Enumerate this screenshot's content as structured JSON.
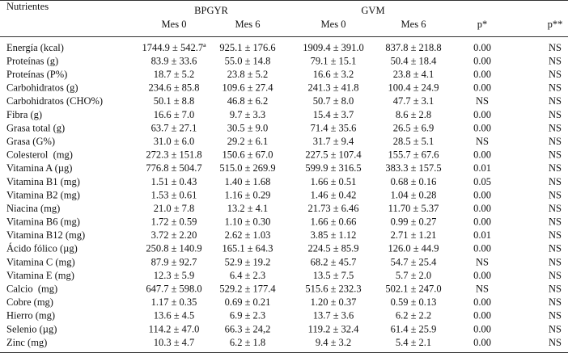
{
  "table": {
    "header": {
      "first": "Nutrientes",
      "groups": [
        "BPGYR",
        "GVM"
      ],
      "columns": [
        "Mes 0",
        "Mes 6",
        "Mes 0",
        "Mes 6",
        "p*",
        "p**"
      ]
    },
    "rows": [
      [
        "Energía (kcal)",
        "1744.9 ± 542.7ª",
        "925.1 ± 176.6",
        "1909.4 ± 391.0",
        "837.8 ± 218.8",
        "0.00",
        "NS"
      ],
      [
        "Proteínas (g)",
        "83.9 ± 33.6",
        "55.0 ± 14.8",
        "79.1 ± 15.1",
        "50.4 ± 18.4",
        "0.00",
        "NS"
      ],
      [
        "Proteínas (P%)",
        "18.7 ± 5.2",
        "23.8 ± 5.2",
        "16.6 ± 3.2",
        "23.8 ± 4.1",
        "0.00",
        "NS"
      ],
      [
        "Carbohidratos (g)",
        "234.6 ± 85.8",
        "109.6 ± 27.4",
        "241.3 ± 41.8",
        "100.4 ± 24.9",
        "0.00",
        "NS"
      ],
      [
        "Carbohidratos (CHO%)",
        "50.1 ± 8.8",
        "46.8 ± 6.2",
        "50.7 ± 8.0",
        "47.7 ± 3.1",
        "NS",
        "NS"
      ],
      [
        "Fibra (g)",
        "16.6 ± 7.0",
        "9.7 ± 3.3",
        "15.4 ± 3.7",
        "8.6 ± 2.8",
        "0.00",
        "NS"
      ],
      [
        "Grasa total (g)",
        "63.7 ± 27.1",
        "30.5 ± 9.0",
        "71.4 ± 35.6",
        "26.5 ± 6.9",
        "0.00",
        "NS"
      ],
      [
        "Grasa (G%)",
        "31.0 ± 6.0",
        "29.2 ± 6.1",
        "31.7 ± 9.4",
        "28.5 ± 5.1",
        "NS",
        "NS"
      ],
      [
        "Colesterol  (mg)",
        "272.3 ± 151.8",
        "150.6 ± 67.0",
        "227.5 ± 107.4",
        "155.7 ± 67.6",
        "0.00",
        "NS"
      ],
      [
        "Vitamina A (µg)",
        "776.8 ± 504.7",
        "515.0 ± 269.9",
        "599.9 ± 316.5",
        "383.3 ± 157.5",
        "0.01",
        "NS"
      ],
      [
        "Vitamina B1 (mg)",
        "1.51 ± 0.43",
        "1.40 ± 1.68",
        "1.66 ± 0.51",
        "0.68 ± 0.16",
        "0.05",
        "NS"
      ],
      [
        "Vitamina B2 (mg)",
        "1.53 ± 0.61",
        "1.16 ± 0.29",
        "1.46 ± 0.42",
        "1.04 ± 0.28",
        "0.00",
        "NS"
      ],
      [
        "Niacina (mg)",
        "21.0 ± 7.8",
        "13.2 ± 4.1",
        "21.73 ± 6.46",
        "11.70 ± 5.37",
        "0.00",
        "NS"
      ],
      [
        "Vitamina B6 (mg)",
        "1.72 ± 0.59",
        "1.10 ± 0.30",
        "1.66 ± 0.66",
        "0.99 ± 0.27",
        "0.00",
        "NS"
      ],
      [
        "Vitamina B12 (mg)",
        "3.72 ± 2.20",
        "2.62 ± 1.03",
        "3.85 ± 1.12",
        "2.71 ± 1.21",
        "0.01",
        "NS"
      ],
      [
        "Ácido fólico (µg)",
        "250.8 ± 140.9",
        "165.1 ± 64.3",
        "224.5 ± 85.9",
        "126.0 ± 44.9",
        "0.00",
        "NS"
      ],
      [
        "Vitamina C (mg)",
        "87.9 ± 92.7",
        "52.9 ± 19.2",
        "68.2 ± 45.7",
        "54.7 ± 25.4",
        "NS",
        "NS"
      ],
      [
        "Vitamina E (mg)",
        "12.3 ± 5.9",
        "6.4 ± 2.3",
        "13.5 ± 7.5",
        "5.7 ± 2.0",
        "0.00",
        "NS"
      ],
      [
        "Calcio  (mg)",
        "647.7 ± 598.0",
        "529.2 ± 177.4",
        "515.6 ± 232.3",
        "502.1 ± 247.0",
        "NS",
        "NS"
      ],
      [
        "Cobre (mg)",
        "1.17 ± 0.35",
        "0.69 ± 0.21",
        "1.20 ± 0.37",
        "0.59 ± 0.13",
        "0.00",
        "NS"
      ],
      [
        "Hierro (mg)",
        "13.6 ± 4.5",
        "6.9 ± 2.3",
        "13.7 ± 3.6",
        "6.2 ± 2.2",
        "0.00",
        "NS"
      ],
      [
        "Selenio (µg)",
        "114.2 ± 47.0",
        "66.3 ± 24,2",
        "119.2 ± 32.4",
        "61.4 ± 25.9",
        "0.00",
        "NS"
      ],
      [
        "Zinc (mg)",
        "10.3 ± 4.7",
        "6.2 ± 1.8",
        "9.4 ± 3.2",
        "5.4 ± 2.1",
        "0.00",
        "NS"
      ]
    ]
  }
}
